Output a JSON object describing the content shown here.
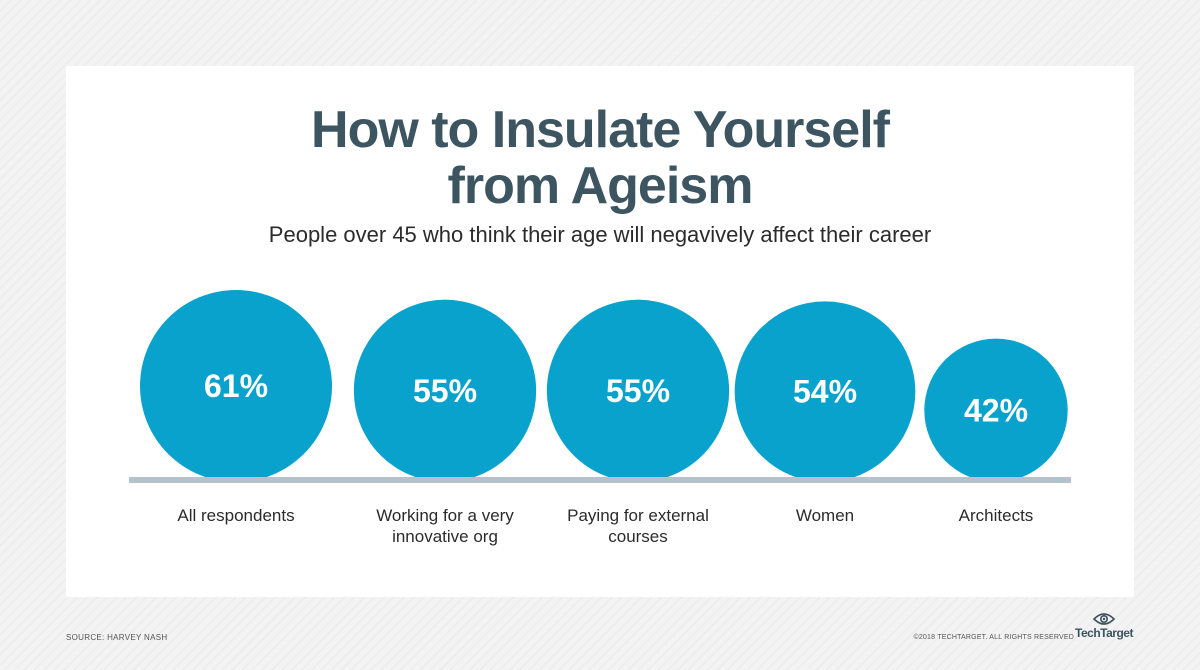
{
  "header": {
    "title_line1": "How to Insulate Yourself",
    "title_line2": "from Ageism",
    "subtitle": "People over 45 who think their age will negavively affect their career"
  },
  "chart_data": {
    "type": "bubble",
    "title": "How to Insulate Yourself from Ageism",
    "subtitle": "People over 45 who think their age will negavively affect their career",
    "categories": [
      [
        "All respondents"
      ],
      [
        "Working for a very",
        "innovative org"
      ],
      [
        "Paying for external",
        "courses"
      ],
      [
        "Women"
      ],
      [
        "Architects"
      ]
    ],
    "values": [
      61,
      55,
      55,
      54,
      42
    ],
    "value_labels": [
      "61%",
      "55%",
      "55%",
      "54%",
      "42%"
    ],
    "unit": "%"
  },
  "colors": {
    "bubble": "#08a2cd",
    "baseline": "#b5c1cc",
    "title": "#3d5461"
  },
  "footer": {
    "source": "SOURCE: HARVEY NASH",
    "copyright": "©2018 TECHTARGET. ALL RIGHTS RESERVED",
    "brand": "TechTarget"
  },
  "icons": {
    "brand_logo": "eye-icon"
  }
}
